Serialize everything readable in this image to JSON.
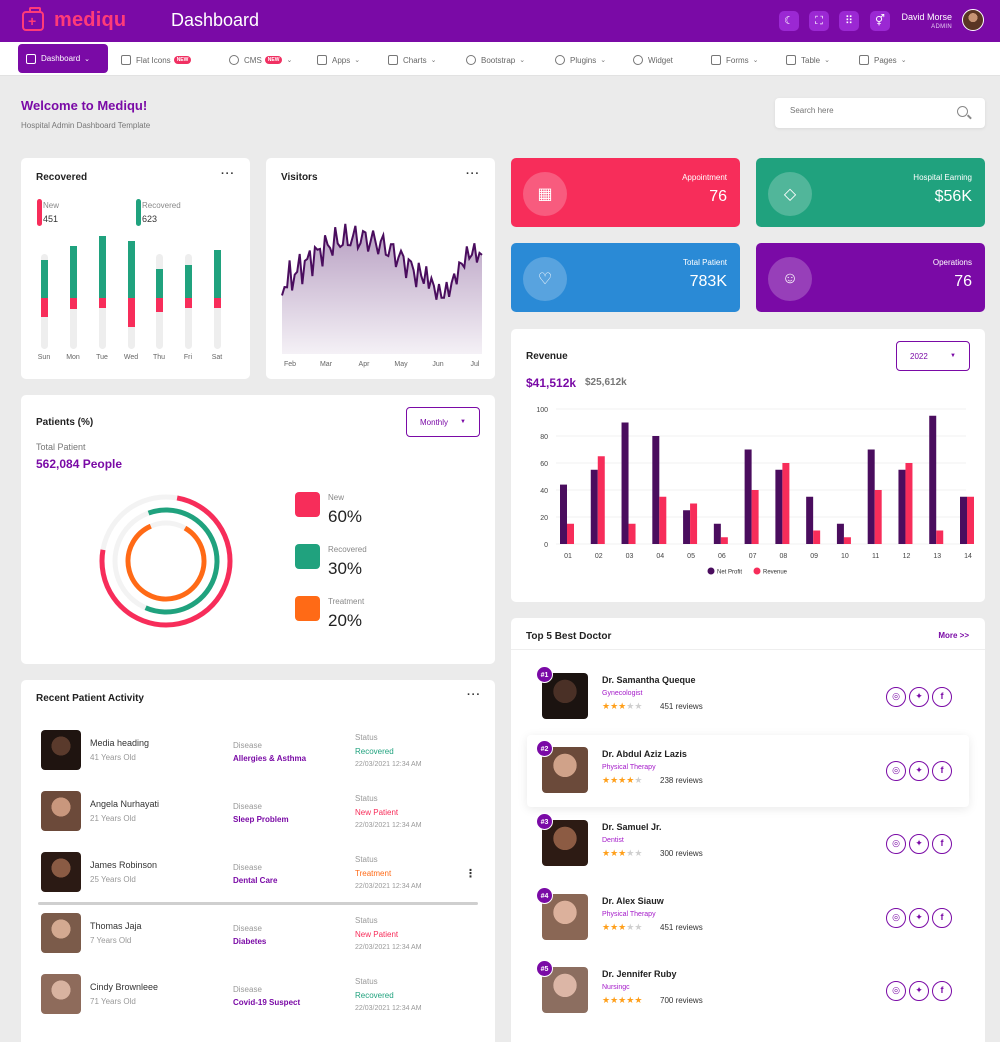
{
  "header": {
    "logo_text": "mediqu",
    "title": "Dashboard",
    "user_name": "David Morse",
    "user_role": "ADMIN",
    "icons": [
      "moon-icon",
      "fullscreen-icon",
      "grid-icon",
      "gender-icon"
    ]
  },
  "nav": {
    "items": [
      {
        "label": "Dashboard",
        "dropdown": true
      },
      {
        "label": "Flat Icons",
        "badge": "NEW"
      },
      {
        "label": "CMS",
        "badge": "NEW",
        "dropdown": true
      },
      {
        "label": "Apps",
        "dropdown": true
      },
      {
        "label": "Charts",
        "dropdown": true
      },
      {
        "label": "Bootstrap",
        "dropdown": true
      },
      {
        "label": "Plugins",
        "dropdown": true
      },
      {
        "label": "Widget"
      },
      {
        "label": "Forms",
        "dropdown": true
      },
      {
        "label": "Table",
        "dropdown": true
      },
      {
        "label": "Pages",
        "dropdown": true
      }
    ]
  },
  "welcome": {
    "title": "Welcome to Mediqu!",
    "subtitle": "Hospital Admin Dashboard Template"
  },
  "search": {
    "placeholder": "Search here"
  },
  "recovered_card": {
    "title": "Recovered",
    "legend": [
      {
        "label": "New",
        "value": "451",
        "color": "#f72d5a"
      },
      {
        "label": "Recovered",
        "value": "623",
        "color": "#20a27e"
      }
    ],
    "days": [
      "Sun",
      "Mon",
      "Tue",
      "Wed",
      "Thu",
      "Fri",
      "Sat"
    ],
    "recovered_share": [
      0.4,
      0.55,
      0.65,
      0.6,
      0.3,
      0.35,
      0.5
    ],
    "new_share": [
      0.2,
      0.12,
      0.1,
      0.3,
      0.15,
      0.1,
      0.1
    ]
  },
  "visitors_card": {
    "title": "Visitors",
    "months": [
      "Feb",
      "Mar",
      "Apr",
      "May",
      "Jun",
      "Jul"
    ]
  },
  "stats": [
    {
      "label": "Appointment",
      "value": "76",
      "color": "#f72d5a",
      "icon": "calendar-icon"
    },
    {
      "label": "Hospital Earning",
      "value": "$56K",
      "color": "#20a27e",
      "icon": "diamond-icon"
    },
    {
      "label": "Total Patient",
      "value": "783K",
      "color": "#2a8ad6",
      "icon": "heart-icon"
    },
    {
      "label": "Operations",
      "value": "76",
      "color": "#7a0aa6",
      "icon": "user-icon"
    }
  ],
  "patients_card": {
    "title": "Patients (%)",
    "dropdown": "Monthly",
    "total_label": "Total Patient",
    "total_value": "562,084 People",
    "items": [
      {
        "label": "New",
        "value": "60%",
        "percent": 60,
        "color": "#f72d5a"
      },
      {
        "label": "Recovered",
        "value": "30%",
        "percent": 30,
        "color": "#20a27e"
      },
      {
        "label": "Treatment",
        "value": "20%",
        "percent": 20,
        "color": "#ff6a16"
      }
    ]
  },
  "revenue_card": {
    "title": "Revenue",
    "dropdown": "2022",
    "value_primary": "$41,512k",
    "value_secondary": "$25,612k"
  },
  "chart_data": {
    "type": "bar",
    "categories": [
      "01",
      "02",
      "03",
      "04",
      "05",
      "06",
      "07",
      "08",
      "09",
      "10",
      "11",
      "12",
      "13",
      "14"
    ],
    "series": [
      {
        "name": "Net Profit",
        "color": "#4a0d5e",
        "values": [
          44,
          55,
          90,
          80,
          25,
          15,
          70,
          55,
          35,
          15,
          70,
          55,
          95,
          35
        ]
      },
      {
        "name": "Revenue",
        "color": "#f72d5a",
        "values": [
          15,
          65,
          15,
          35,
          30,
          5,
          40,
          60,
          10,
          5,
          40,
          60,
          10,
          35
        ]
      }
    ],
    "ylim": [
      0,
      100
    ],
    "yticks": [
      "0",
      "20",
      "40",
      "60",
      "80",
      "100"
    ],
    "legend": "bottom"
  },
  "activity_card": {
    "title": "Recent Patient Activity",
    "disease_label": "Disease",
    "status_label": "Status",
    "rows": [
      {
        "name": "Media heading",
        "age": "41 Years Old",
        "disease": "Allergies & Asthma",
        "status": "Recovered",
        "status_color": "#20a27e",
        "date": "22/03/2021 12:34 AM"
      },
      {
        "name": "Angela Nurhayati",
        "age": "21 Years Old",
        "disease": "Sleep Problem",
        "status": "New Patient",
        "status_color": "#f72d5a",
        "date": "22/03/2021 12:34 AM"
      },
      {
        "name": "James Robinson",
        "age": "25 Years Old",
        "disease": "Dental Care",
        "status": "Treatment",
        "status_color": "#ff6a16",
        "date": "22/03/2021 12:34 AM"
      },
      {
        "name": "Thomas Jaja",
        "age": "7 Years Old",
        "disease": "Diabetes",
        "status": "New Patient",
        "status_color": "#f72d5a",
        "date": "22/03/2021 12:34 AM"
      },
      {
        "name": "Cindy Brownleee",
        "age": "71 Years Old",
        "disease": "Covid-19 Suspect",
        "status": "Recovered",
        "status_color": "#20a27e",
        "date": "22/03/2021 12:34 AM"
      }
    ]
  },
  "doctors_card": {
    "title": "Top 5 Best Doctor",
    "more": "More >>",
    "doctors": [
      {
        "rank": "#1",
        "name": "Dr. Samantha Queque",
        "specialty": "Gynecologist",
        "stars": 3,
        "reviews": "451 reviews"
      },
      {
        "rank": "#2",
        "name": "Dr. Abdul Aziz Lazis",
        "specialty": "Physical Therapy",
        "stars": 4,
        "reviews": "238 reviews"
      },
      {
        "rank": "#3",
        "name": "Dr. Samuel Jr.",
        "specialty": "Dentist",
        "stars": 3,
        "reviews": "300 reviews"
      },
      {
        "rank": "#4",
        "name": "Dr. Alex Siauw",
        "specialty": "Physical Therapy",
        "stars": 3,
        "reviews": "451 reviews"
      },
      {
        "rank": "#5",
        "name": "Dr. Jennifer Ruby",
        "specialty": "Nursingc",
        "stars": 5,
        "reviews": "700 reviews"
      }
    ]
  }
}
